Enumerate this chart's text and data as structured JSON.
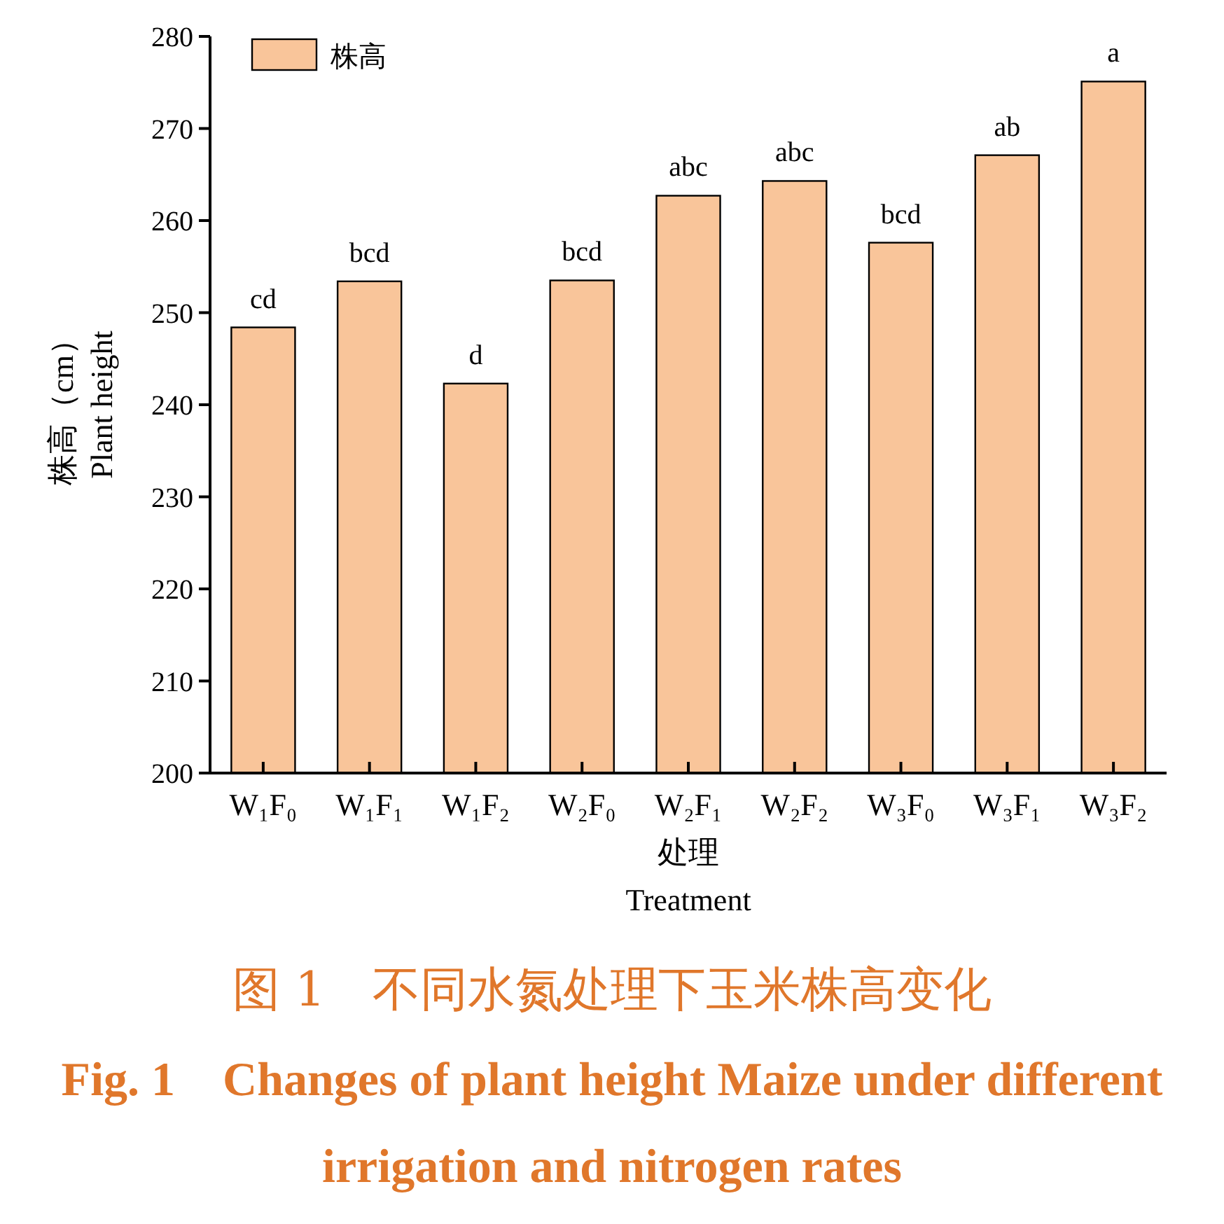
{
  "chart_data": {
    "type": "bar",
    "title": "图 1　不同水氮处理下玉米株高变化",
    "subtitle": "Fig. 1　Changes of plant height Maize under different irrigation and nitrogen rates",
    "xlabel": "处理\nTreatment",
    "ylabel": "株高（cm）\nPlant height",
    "categories": [
      "W₁F₀",
      "W₁F₁",
      "W₁F₂",
      "W₂F₀",
      "W₂F₁",
      "W₂F₂",
      "W₃F₀",
      "W₃F₁",
      "W₃F₂"
    ],
    "series": [
      {
        "name": "株高",
        "color": "#f9c59a",
        "values": [
          248.4,
          253.4,
          242.3,
          253.5,
          262.7,
          264.3,
          257.6,
          267.1,
          275.1
        ],
        "value_labels": [
          "cd",
          "bcd",
          "d",
          "bcd",
          "abc",
          "abc",
          "bcd",
          "ab",
          "a"
        ]
      }
    ],
    "ylim": [
      200,
      280
    ],
    "yticks": [
      200,
      210,
      220,
      230,
      240,
      250,
      260,
      270,
      280
    ],
    "legend": "top left",
    "grid": false
  }
}
